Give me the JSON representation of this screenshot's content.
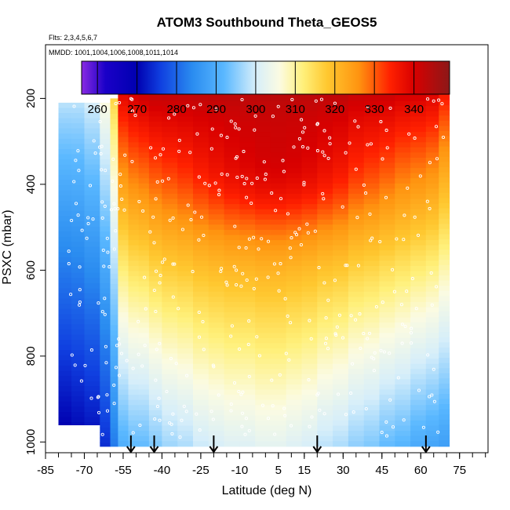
{
  "chart_data": {
    "type": "heatmap",
    "title": "ATOM3 Southbound Theta_GEOS5",
    "subtitle_flights": "Flts: 2,3,4,5,6,7",
    "subtitle_dates": "MMDD: 1001,1004,1006,1008,1011,1014",
    "xlabel": "Latitude (deg N)",
    "ylabel": "PSXC (mbar)",
    "xlim": [
      -85,
      86
    ],
    "ylim": [
      1025,
      75
    ],
    "y_reversed": true,
    "x_ticks": [
      -85,
      -70,
      -55,
      -40,
      -25,
      -10,
      5,
      15,
      30,
      45,
      60,
      75
    ],
    "y_ticks": [
      200,
      400,
      600,
      800,
      1000
    ],
    "colorbar": {
      "range": [
        256,
        349
      ],
      "ticks": [
        260,
        270,
        280,
        290,
        300,
        310,
        320,
        330,
        340
      ],
      "gradient_stops": [
        {
          "value": 256,
          "color": "#8a2be2"
        },
        {
          "value": 262,
          "color": "#1a00c8"
        },
        {
          "value": 270,
          "color": "#0000b0"
        },
        {
          "value": 276,
          "color": "#1040e0"
        },
        {
          "value": 284,
          "color": "#2a8cf0"
        },
        {
          "value": 292,
          "color": "#5ab8ff"
        },
        {
          "value": 300,
          "color": "#d6eefa"
        },
        {
          "value": 306,
          "color": "#fbfbe2"
        },
        {
          "value": 312,
          "color": "#fff07a"
        },
        {
          "value": 318,
          "color": "#ffc830"
        },
        {
          "value": 326,
          "color": "#ff9410"
        },
        {
          "value": 334,
          "color": "#ff2000"
        },
        {
          "value": 340,
          "color": "#d80000"
        },
        {
          "value": 349,
          "color": "#8c1818"
        }
      ]
    },
    "arrows_latitude": [
      -52,
      -43,
      -20,
      20,
      62
    ],
    "columns": [
      {
        "lat": [
          -80,
          -75
        ],
        "p_top": 210,
        "p_bot": 960,
        "t_top": 298,
        "t_bot": 270
      },
      {
        "lat": [
          -75,
          -70
        ],
        "p_top": 210,
        "p_bot": 960,
        "t_top": 298,
        "t_bot": 271
      },
      {
        "lat": [
          -70,
          -64
        ],
        "p_top": 210,
        "p_bot": 960,
        "t_top": 300,
        "t_bot": 272
      },
      {
        "lat": [
          -64,
          -60
        ],
        "p_top": 210,
        "p_bot": 1010,
        "t_top": 306,
        "t_bot": 274
      },
      {
        "lat": [
          -60,
          -57
        ],
        "p_top": 200,
        "p_bot": 1010,
        "t_top": 316,
        "t_bot": 282
      },
      {
        "lat": [
          -57,
          -53
        ],
        "p_top": 170,
        "p_bot": 1010,
        "t_top": 340,
        "t_bot": 290
      },
      {
        "lat": [
          -53,
          -49
        ],
        "p_top": 170,
        "p_bot": 1010,
        "t_top": 342,
        "t_bot": 292
      },
      {
        "lat": [
          -49,
          -45
        ],
        "p_top": 170,
        "p_bot": 1010,
        "t_top": 343,
        "t_bot": 292
      },
      {
        "lat": [
          -45,
          -40
        ],
        "p_top": 170,
        "p_bot": 1010,
        "t_top": 344,
        "t_bot": 294
      },
      {
        "lat": [
          -40,
          -34
        ],
        "p_top": 170,
        "p_bot": 1010,
        "t_top": 344,
        "t_bot": 296
      },
      {
        "lat": [
          -34,
          -28
        ],
        "p_top": 170,
        "p_bot": 1010,
        "t_top": 344,
        "t_bot": 297
      },
      {
        "lat": [
          -28,
          -22
        ],
        "p_top": 170,
        "p_bot": 1010,
        "t_top": 344,
        "t_bot": 299
      },
      {
        "lat": [
          -22,
          -16
        ],
        "p_top": 170,
        "p_bot": 1010,
        "t_top": 344,
        "t_bot": 300
      },
      {
        "lat": [
          -16,
          -10
        ],
        "p_top": 170,
        "p_bot": 1010,
        "t_top": 344,
        "t_bot": 301
      },
      {
        "lat": [
          -10,
          -4
        ],
        "p_top": 170,
        "p_bot": 1010,
        "t_top": 344,
        "t_bot": 301
      },
      {
        "lat": [
          -4,
          2
        ],
        "p_top": 170,
        "p_bot": 1010,
        "t_top": 344,
        "t_bot": 302
      },
      {
        "lat": [
          2,
          8
        ],
        "p_top": 170,
        "p_bot": 1010,
        "t_top": 344,
        "t_bot": 302
      },
      {
        "lat": [
          8,
          14
        ],
        "p_top": 170,
        "p_bot": 1010,
        "t_top": 344,
        "t_bot": 301
      },
      {
        "lat": [
          14,
          20
        ],
        "p_top": 170,
        "p_bot": 1010,
        "t_top": 344,
        "t_bot": 300
      },
      {
        "lat": [
          20,
          26
        ],
        "p_top": 170,
        "p_bot": 1010,
        "t_top": 344,
        "t_bot": 298
      },
      {
        "lat": [
          26,
          32
        ],
        "p_top": 170,
        "p_bot": 1010,
        "t_top": 344,
        "t_bot": 297
      },
      {
        "lat": [
          32,
          38
        ],
        "p_top": 170,
        "p_bot": 1010,
        "t_top": 343,
        "t_bot": 295
      },
      {
        "lat": [
          38,
          44
        ],
        "p_top": 170,
        "p_bot": 1010,
        "t_top": 343,
        "t_bot": 294
      },
      {
        "lat": [
          44,
          50
        ],
        "p_top": 170,
        "p_bot": 1010,
        "t_top": 343,
        "t_bot": 292
      },
      {
        "lat": [
          50,
          56
        ],
        "p_top": 170,
        "p_bot": 1010,
        "t_top": 342,
        "t_bot": 291
      },
      {
        "lat": [
          56,
          62
        ],
        "p_top": 170,
        "p_bot": 1010,
        "t_top": 342,
        "t_bot": 289
      },
      {
        "lat": [
          62,
          67
        ],
        "p_top": 170,
        "p_bot": 1010,
        "t_top": 341,
        "t_bot": 288
      },
      {
        "lat": [
          67,
          71
        ],
        "p_top": 180,
        "p_bot": 1010,
        "t_top": 336,
        "t_bot": 287
      }
    ]
  }
}
